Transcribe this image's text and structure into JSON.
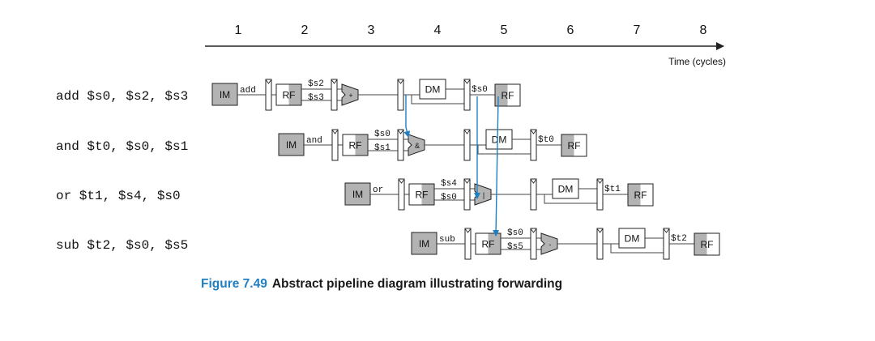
{
  "timeline": {
    "cycles": [
      "1",
      "2",
      "3",
      "4",
      "5",
      "6",
      "7",
      "8"
    ],
    "axis_label": "Time (cycles)"
  },
  "stage_labels": {
    "im": "IM",
    "rf": "RF",
    "dm": "DM"
  },
  "instructions": [
    {
      "text": "add $s0, $s2, $s3",
      "op": "add",
      "src1": "$s2",
      "src2": "$s3",
      "alu_symbol": "+",
      "dest": "$s0"
    },
    {
      "text": "and $t0, $s0, $s1",
      "op": "and",
      "src1": "$s0",
      "src2": "$s1",
      "alu_symbol": "&",
      "dest": "$t0"
    },
    {
      "text": "or  $t1, $s4, $s0",
      "op": "or",
      "src1": "$s4",
      "src2": "$s0",
      "alu_symbol": "|",
      "dest": "$t1"
    },
    {
      "text": "sub $t2, $s0, $s5",
      "op": "sub",
      "src1": "$s0",
      "src2": "$s5",
      "alu_symbol": "-",
      "dest": "$t2"
    }
  ],
  "forwarding_color": "#1f7fc2",
  "shade_color": "#b3b3b3",
  "caption": {
    "number": "Figure 7.49",
    "title": "Abstract pipeline diagram illustrating forwarding"
  }
}
